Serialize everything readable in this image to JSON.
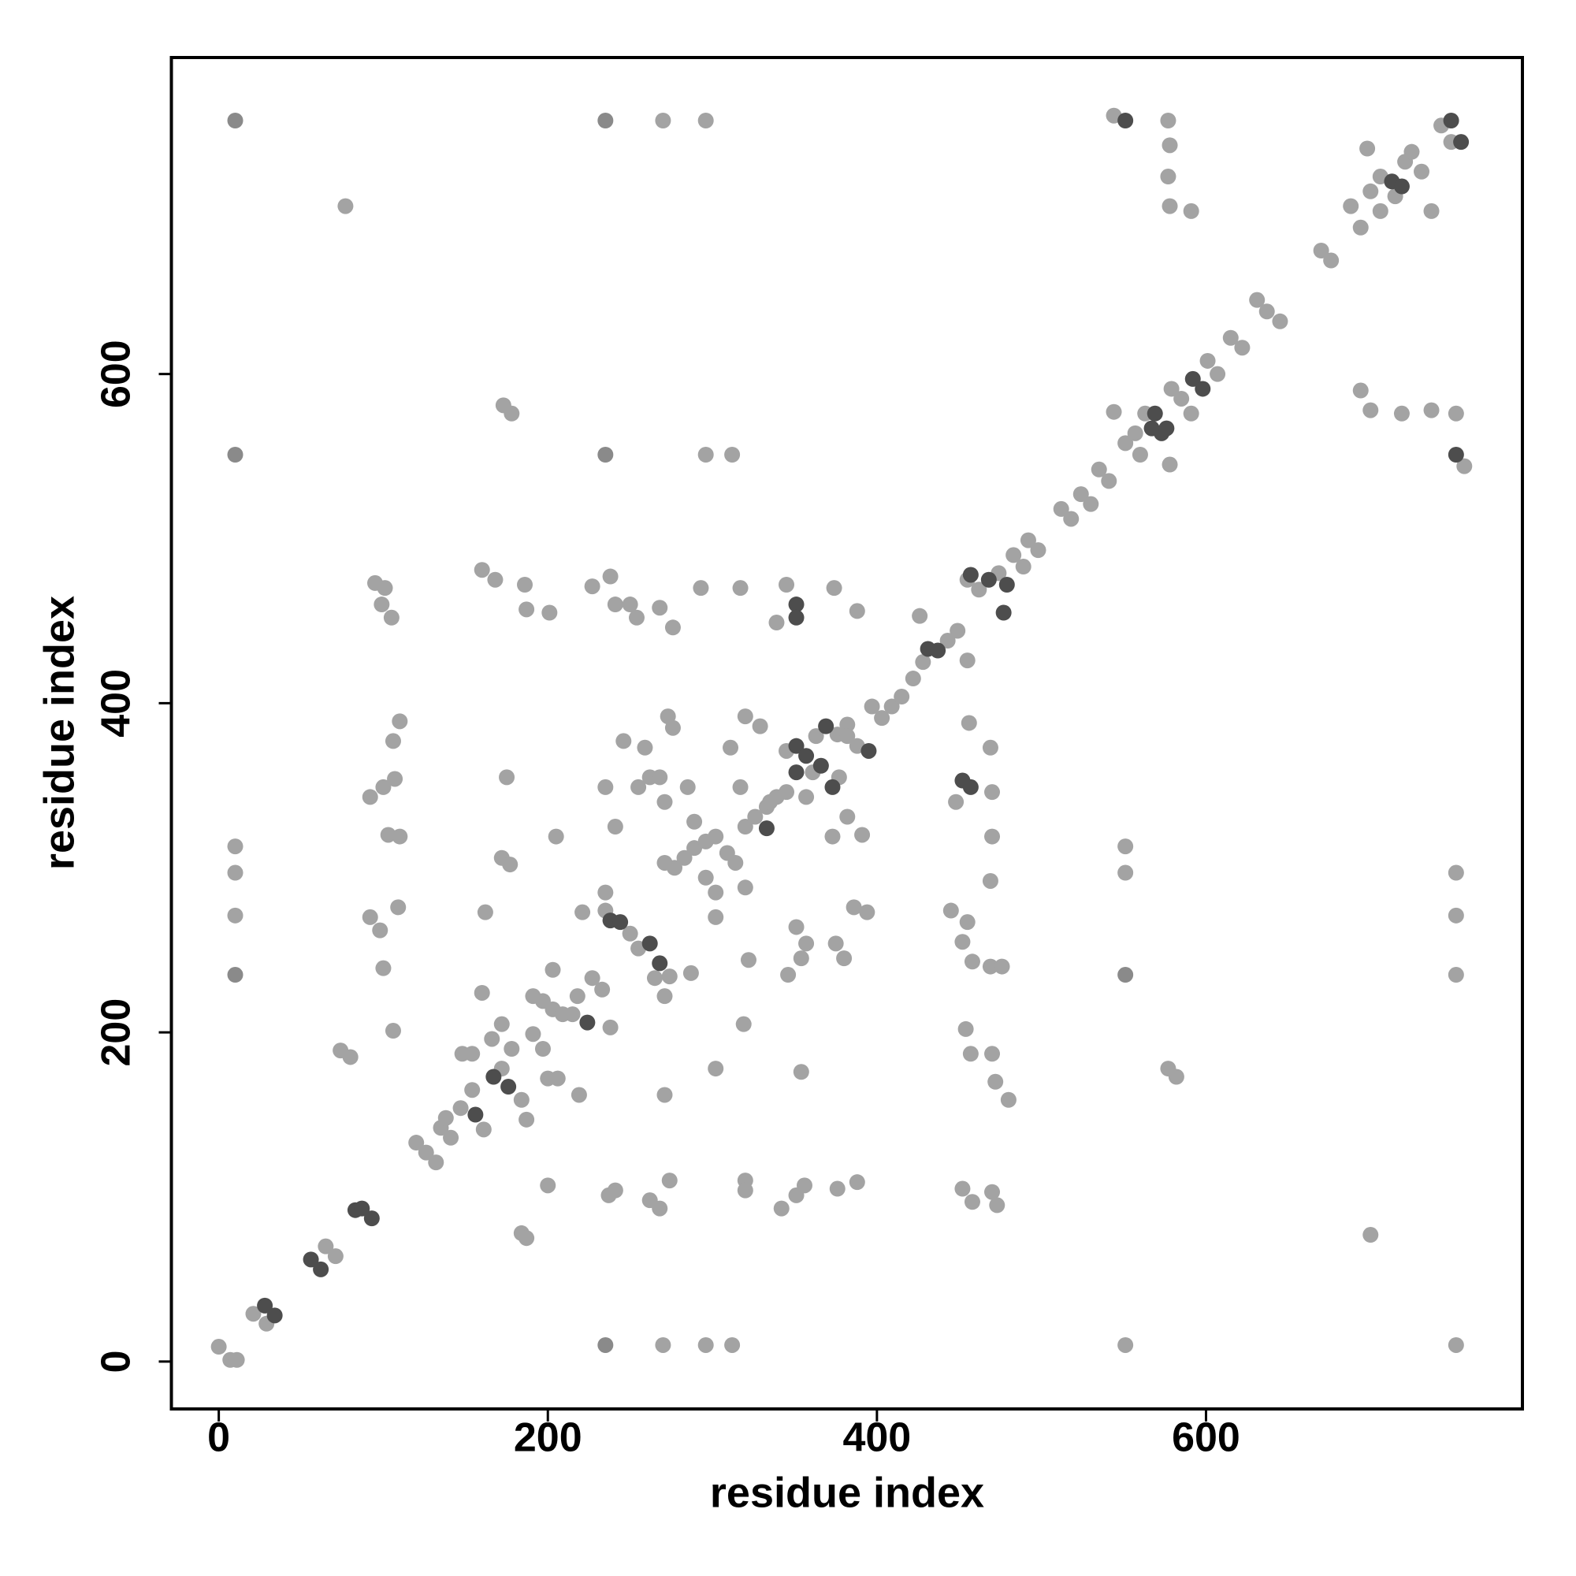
{
  "chart_data": {
    "type": "scatter",
    "x_label": "residue index",
    "y_label": "residue index",
    "xlim": [
      -28.8,
      792.3
    ],
    "ylim": [
      -28.8,
      792.3
    ],
    "xticks": [
      0,
      200,
      400,
      600
    ],
    "yticks": [
      0,
      200,
      400,
      600
    ],
    "grid": false,
    "series": [
      {
        "color": "#a3a3a3",
        "x": [
          0,
          7,
          11,
          21,
          29,
          65,
          71,
          120,
          126,
          132,
          135,
          141,
          138,
          147,
          148,
          154,
          161,
          154,
          166,
          172,
          172,
          178,
          184,
          187,
          191,
          197,
          200,
          206,
          191,
          197,
          203,
          209,
          215,
          218,
          227,
          233,
          235,
          235,
          250,
          255,
          274,
          265,
          271,
          277,
          283,
          289,
          296,
          302,
          309,
          314,
          296,
          302,
          320,
          326,
          333,
          339,
          345,
          345,
          361,
          377,
          363,
          376,
          382,
          388,
          382,
          397,
          403,
          409,
          415,
          422,
          428,
          443,
          449,
          455,
          426,
          462,
          474,
          483,
          489,
          492,
          498,
          512,
          518,
          524,
          530,
          535,
          541,
          544,
          551,
          557,
          560,
          563,
          578,
          579,
          585,
          591,
          601,
          607,
          615,
          622,
          631,
          637,
          645,
          670,
          676,
          688,
          694,
          700,
          706,
          721,
          725,
          731,
          737,
          743,
          749,
          706,
          715,
          698,
          270,
          296,
          77,
          296,
          312,
          173,
          178,
          95,
          101,
          99,
          105,
          160,
          168,
          186,
          187,
          201,
          227,
          238,
          241,
          250,
          254,
          268,
          276,
          293,
          317,
          345,
          339,
          374,
          388,
          544,
          577,
          578,
          577,
          578,
          591,
          694,
          700,
          719,
          737,
          752,
          757,
          110,
          106,
          92,
          100,
          107,
          103,
          110,
          92,
          98,
          109,
          100,
          106,
          10,
          10,
          10,
          74,
          80,
          175,
          172,
          177,
          162,
          160,
          205,
          203,
          221,
          235,
          241,
          246,
          255,
          262,
          268,
          271,
          259,
          273,
          276,
          285,
          289,
          311,
          320,
          329,
          317,
          335,
          357,
          373,
          382,
          391,
          386,
          394,
          375,
          380,
          351,
          357,
          346,
          354,
          219,
          238,
          271,
          302,
          319,
          322,
          302,
          287,
          320,
          271,
          200,
          237,
          241,
          262,
          268,
          274,
          320,
          320,
          342,
          351,
          356,
          376,
          388,
          184,
          187,
          270,
          296,
          312,
          551,
          752,
          551,
          551,
          752,
          752,
          752,
          700,
          577,
          582,
          354,
          455,
          448,
          470,
          469,
          456,
          470,
          469,
          445,
          455,
          452,
          458,
          469,
          476,
          454,
          457,
          470,
          472,
          480,
          452,
          458,
          470,
          473
        ],
        "y": [
          9,
          1,
          1,
          29,
          23,
          70,
          64,
          133,
          127,
          121,
          142,
          136,
          148,
          154,
          187,
          165,
          141,
          187,
          196,
          205,
          178,
          190,
          159,
          147,
          199,
          190,
          172,
          172,
          222,
          219,
          214,
          211,
          211,
          222,
          233,
          226,
          274,
          285,
          260,
          251,
          234,
          233,
          303,
          300,
          306,
          312,
          316,
          319,
          309,
          303,
          294,
          285,
          325,
          331,
          337,
          343,
          346,
          371,
          358,
          355,
          380,
          381,
          387,
          374,
          380,
          398,
          391,
          398,
          404,
          415,
          425,
          438,
          444,
          426,
          453,
          469,
          479,
          490,
          483,
          499,
          493,
          518,
          512,
          527,
          521,
          542,
          535,
          577,
          558,
          564,
          551,
          576,
          545,
          591,
          585,
          576,
          608,
          600,
          622,
          616,
          645,
          638,
          632,
          675,
          669,
          702,
          689,
          711,
          720,
          729,
          735,
          723,
          699,
          751,
          741,
          699,
          708,
          737,
          754,
          754,
          702,
          551,
          551,
          581,
          576,
          473,
          470,
          460,
          452,
          481,
          475,
          472,
          457,
          455,
          471,
          477,
          460,
          460,
          452,
          458,
          446,
          470,
          470,
          472,
          449,
          470,
          456,
          757,
          754,
          739,
          720,
          702,
          699,
          590,
          578,
          576,
          578,
          576,
          544,
          389,
          377,
          343,
          349,
          354,
          320,
          319,
          270,
          262,
          276,
          239,
          201,
          313,
          297,
          271,
          189,
          185,
          355,
          306,
          302,
          273,
          224,
          319,
          238,
          273,
          349,
          325,
          377,
          349,
          355,
          355,
          340,
          373,
          392,
          385,
          349,
          328,
          373,
          392,
          386,
          349,
          340,
          343,
          319,
          331,
          320,
          276,
          273,
          254,
          245,
          264,
          254,
          235,
          245,
          162,
          203,
          162,
          178,
          205,
          244,
          270,
          236,
          288,
          222,
          107,
          101,
          104,
          98,
          93,
          110,
          110,
          104,
          93,
          101,
          107,
          105,
          109,
          78,
          75,
          10,
          10,
          10,
          10,
          10,
          313,
          297,
          297,
          271,
          235,
          77,
          178,
          173,
          176,
          475,
          340,
          346,
          373,
          388,
          319,
          292,
          274,
          267,
          255,
          243,
          240,
          240,
          202,
          187,
          187,
          170,
          159,
          105,
          97,
          103,
          95
        ]
      },
      {
        "color": "#8a8a8a",
        "x": [
          10,
          235,
          10,
          235,
          551,
          10,
          235
        ],
        "y": [
          754,
          754,
          235,
          10,
          235,
          551,
          551
        ]
      },
      {
        "color": "#4d4d4d",
        "x": [
          28,
          34,
          56,
          62,
          83,
          87,
          93,
          156,
          167,
          176,
          224,
          238,
          244,
          262,
          268,
          333,
          351,
          357,
          351,
          366,
          373,
          369,
          395,
          431,
          437,
          457,
          468,
          477,
          479,
          567,
          569,
          573,
          576,
          592,
          598,
          713,
          719,
          749,
          755,
          551,
          351,
          351,
          752,
          452,
          457
        ],
        "y": [
          34,
          28,
          62,
          56,
          92,
          93,
          87,
          150,
          173,
          167,
          206,
          268,
          267,
          254,
          242,
          324,
          374,
          368,
          358,
          362,
          349,
          386,
          371,
          433,
          432,
          478,
          475,
          455,
          472,
          567,
          576,
          564,
          567,
          597,
          591,
          717,
          714,
          754,
          741,
          754,
          460,
          452,
          551,
          353,
          349
        ]
      }
    ]
  }
}
